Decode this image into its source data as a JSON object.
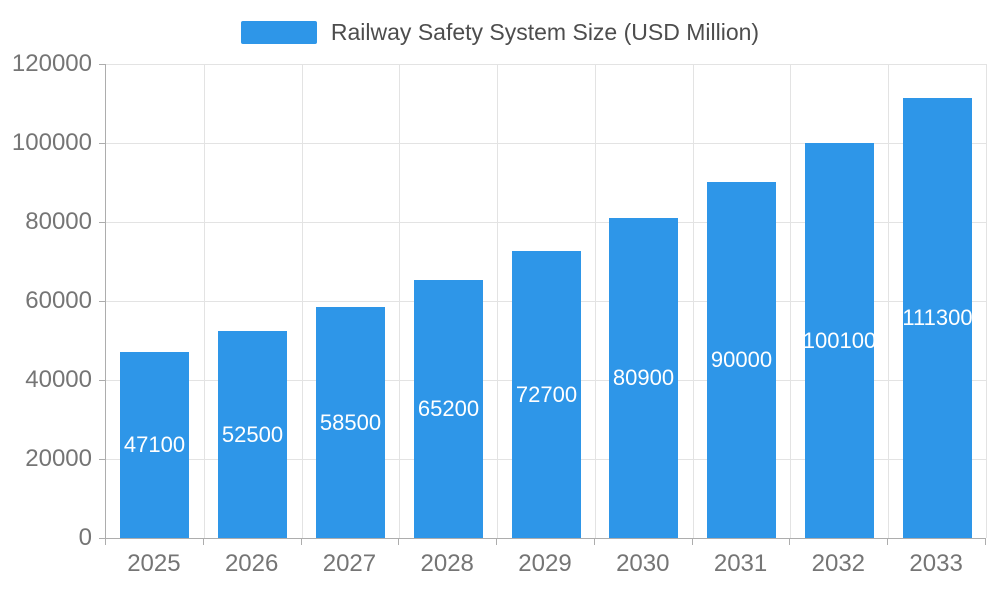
{
  "chart_data": {
    "type": "bar",
    "title": "Railway Safety System Size (USD Million)",
    "categories": [
      "2025",
      "2026",
      "2027",
      "2028",
      "2029",
      "2030",
      "2031",
      "2032",
      "2033"
    ],
    "values": [
      47100,
      52500,
      58500,
      65200,
      72700,
      80900,
      90000,
      100100,
      111300
    ],
    "xlabel": "",
    "ylabel": "",
    "ylim": [
      0,
      120000
    ],
    "yticks": [
      0,
      20000,
      40000,
      60000,
      80000,
      100000,
      120000
    ],
    "grid": true,
    "legend_position": "top",
    "bar_value_labels": "inside-center",
    "colors": {
      "bar": "#2E96E8",
      "grid": "#E3E3E3",
      "axis": "#ADADAD",
      "tick_text": "#757575",
      "legend_text": "#4D4D4D",
      "bar_label_text": "#FFFFFF",
      "background": "#FFFFFF"
    }
  }
}
